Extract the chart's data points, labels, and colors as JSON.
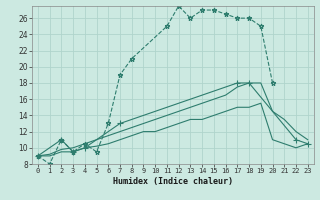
{
  "xlabel": "Humidex (Indice chaleur)",
  "bg_color": "#cce9e1",
  "grid_color": "#b0d4cc",
  "line_color": "#2e7d6e",
  "xlim": [
    -0.5,
    23.5
  ],
  "ylim": [
    8,
    27.5
  ],
  "xticks": [
    0,
    1,
    2,
    3,
    4,
    5,
    6,
    7,
    8,
    9,
    10,
    11,
    12,
    13,
    14,
    15,
    16,
    17,
    18,
    19,
    20,
    21,
    22,
    23
  ],
  "yticks": [
    8,
    10,
    12,
    14,
    16,
    18,
    20,
    22,
    24,
    26
  ],
  "series": [
    {
      "x": [
        0,
        1,
        2,
        3,
        4,
        5,
        6,
        7,
        8,
        11,
        12,
        13,
        14,
        15,
        16,
        17,
        18,
        19,
        20
      ],
      "y": [
        9,
        8,
        11,
        9.5,
        10.5,
        9.5,
        13,
        19,
        21,
        25,
        27.5,
        26,
        27,
        27,
        26.5,
        26,
        26,
        25,
        18
      ],
      "marker": "*",
      "ls": "--",
      "lw": 0.8,
      "ms": 3.5
    },
    {
      "x": [
        0,
        2,
        3,
        4,
        7,
        17,
        18,
        22,
        23
      ],
      "y": [
        9,
        11,
        9.5,
        10,
        13,
        18,
        18,
        11,
        10.5
      ],
      "marker": "+",
      "ls": "-",
      "lw": 0.8,
      "ms": 4
    },
    {
      "x": [
        0,
        1,
        2,
        3,
        4,
        5,
        6,
        7,
        8,
        9,
        10,
        11,
        12,
        13,
        14,
        15,
        16,
        17,
        18,
        19,
        20,
        21,
        22,
        23
      ],
      "y": [
        9,
        9.2,
        9.8,
        10,
        10.5,
        11,
        11.5,
        12,
        12.5,
        13,
        13.5,
        14,
        14.5,
        15,
        15.5,
        16,
        16.5,
        17.5,
        18,
        18,
        14.5,
        13.5,
        12,
        11
      ],
      "marker": null,
      "ls": "-",
      "lw": 0.8,
      "ms": 0
    },
    {
      "x": [
        0,
        1,
        2,
        3,
        4,
        5,
        6,
        7,
        8,
        9,
        10,
        11,
        12,
        13,
        14,
        15,
        16,
        17,
        18,
        19,
        20,
        21,
        22,
        23
      ],
      "y": [
        9,
        9,
        9.5,
        9.5,
        10,
        10.2,
        10.5,
        11,
        11.5,
        12,
        12,
        12.5,
        13,
        13.5,
        13.5,
        14,
        14.5,
        15,
        15,
        15.5,
        11,
        10.5,
        10,
        10.5
      ],
      "marker": null,
      "ls": "-",
      "lw": 0.8,
      "ms": 0
    }
  ]
}
